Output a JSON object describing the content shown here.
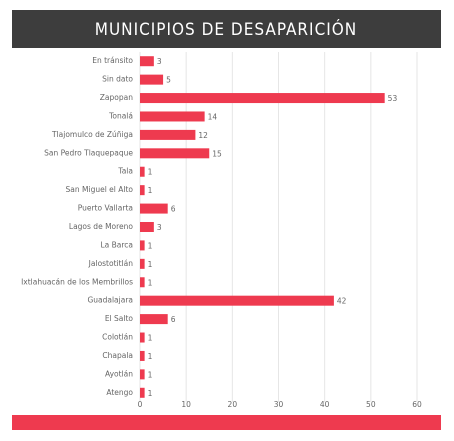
{
  "chart_data": {
    "type": "bar",
    "orientation": "horizontal",
    "title": "MUNICIPIOS DE DESAPARICIÓN",
    "categories": [
      "En tránsito",
      "Sin dato",
      "Zapopan",
      "Tonalá",
      "Tlajomulco de Zúñiga",
      "San Pedro Tlaquepaque",
      "Tala",
      "San Miguel el Alto",
      "Puerto Vallarta",
      "Lagos de Moreno",
      "La Barca",
      "Jalostotitlán",
      "Ixtlahuacán de los Membrillos",
      "Guadalajara",
      "El Salto",
      "Colotlán",
      "Chapala",
      "Ayotlán",
      "Atengo"
    ],
    "values": [
      3,
      5,
      53,
      14,
      12,
      15,
      1,
      1,
      6,
      3,
      1,
      1,
      1,
      42,
      6,
      1,
      1,
      1,
      1
    ],
    "color": "#ee3a4f",
    "xlim": [
      0,
      60
    ],
    "xticks": [
      0,
      10,
      20,
      30,
      40,
      50,
      60
    ],
    "grid": true
  }
}
